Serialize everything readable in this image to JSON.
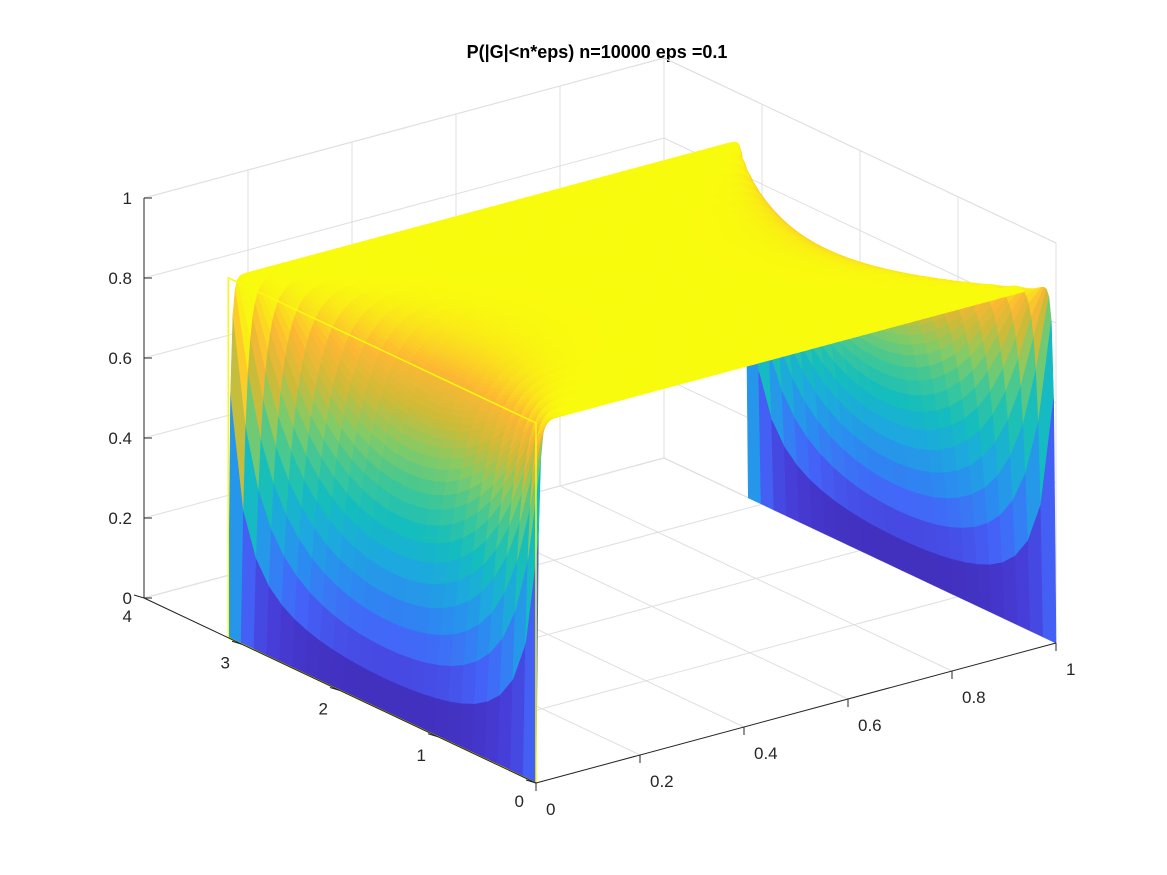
{
  "chart_data": {
    "type": "surface",
    "title": "P(|G|<n*eps) n=10000 eps =0.1",
    "xlabel": "",
    "ylabel": "",
    "zlabel": "",
    "x_ticks": [
      "0",
      "0.2",
      "0.4",
      "0.6",
      "0.8",
      "1"
    ],
    "y_ticks": [
      "0",
      "1",
      "2",
      "3",
      "4"
    ],
    "z_ticks": [
      "0",
      "0.2",
      "0.4",
      "0.6",
      "0.8",
      "1"
    ],
    "xlim": [
      0,
      1
    ],
    "ylim": [
      0,
      4
    ],
    "zlim": [
      0,
      1
    ],
    "grid": true,
    "colormap": "parula",
    "surface_function": {
      "description_free": "",
      "x_range": [
        0,
        1
      ],
      "y_range": [
        0,
        3.14
      ],
      "z_range": [
        0,
        0.9
      ]
    },
    "colors": {
      "low": "#3e26a8",
      "high": "#f9fb0e"
    }
  }
}
